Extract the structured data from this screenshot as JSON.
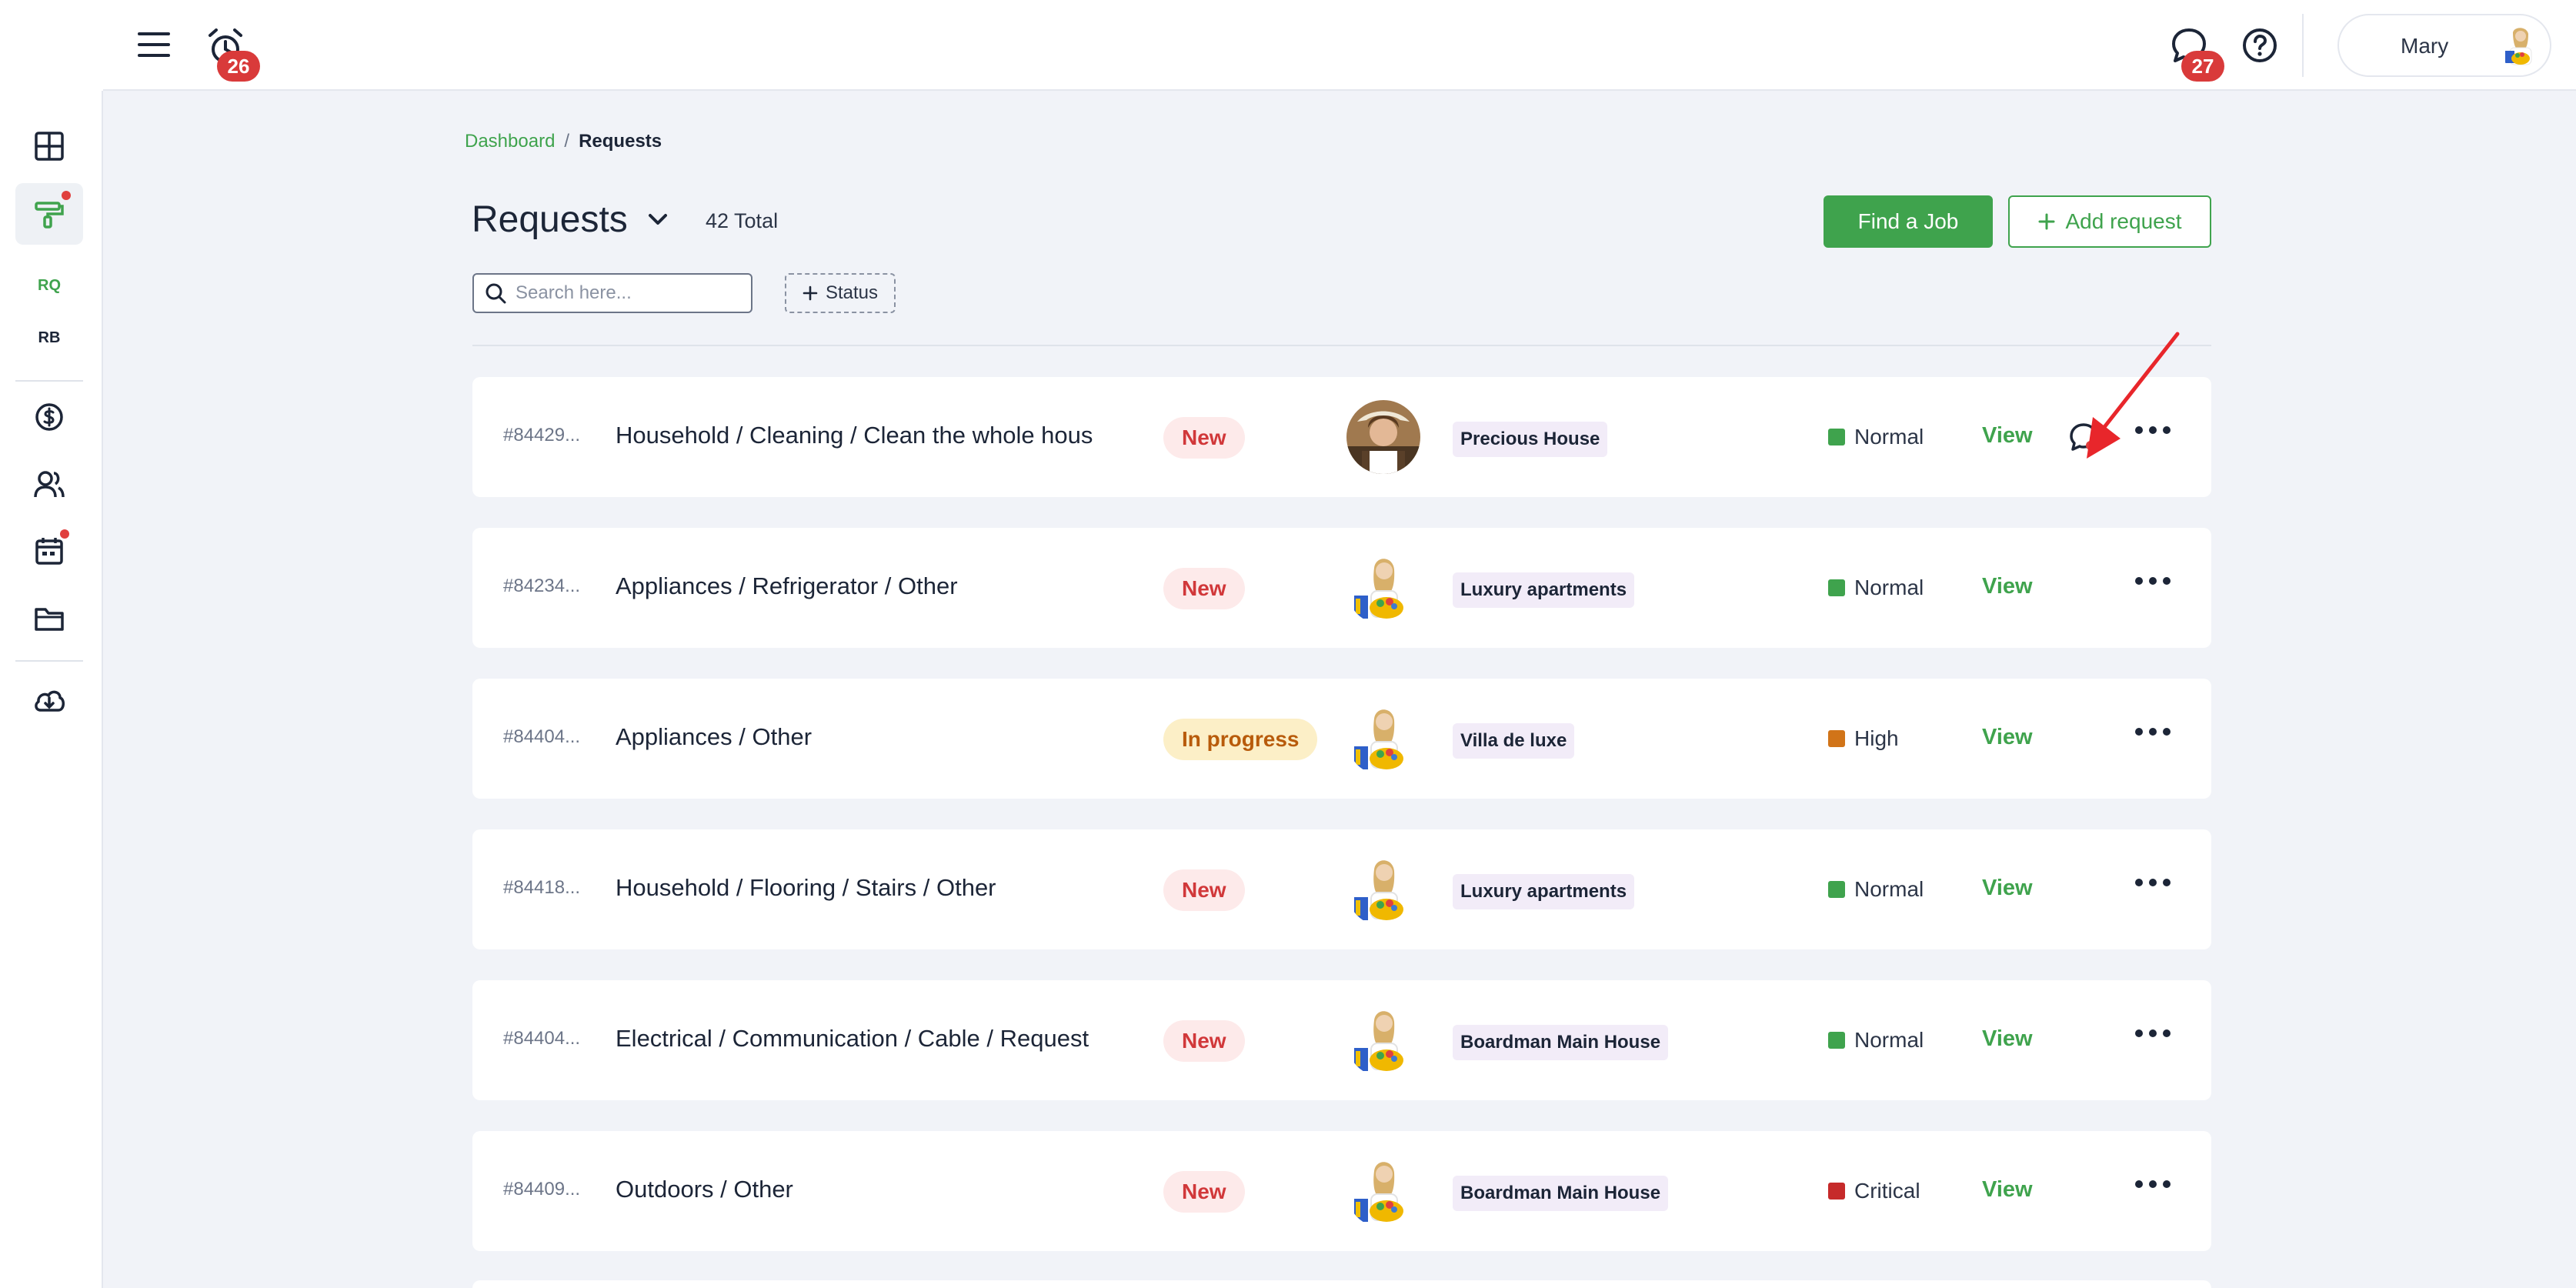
{
  "topbar": {
    "alarm_badge": "26",
    "chat_badge": "27",
    "user_name": "Mary"
  },
  "sidebar": {
    "items": [
      {
        "name": "dashboard-icon"
      },
      {
        "name": "requests-paint-icon"
      },
      {
        "label": "RQ",
        "color": "#3fa34d"
      },
      {
        "label": "RB",
        "color": "#1c2537"
      },
      {
        "name": "billing-dollar-icon"
      },
      {
        "name": "users-icon"
      },
      {
        "name": "calendar-icon"
      },
      {
        "name": "folder-icon"
      },
      {
        "name": "cloud-download-icon"
      }
    ]
  },
  "breadcrumb": {
    "root": "Dashboard",
    "separator": "/",
    "current": "Requests"
  },
  "header": {
    "title": "Requests",
    "total": "42 Total",
    "find_job": "Find a Job",
    "add_request": "Add request"
  },
  "filters": {
    "search_placeholder": "Search here...",
    "status_label": "Status"
  },
  "rows": [
    {
      "id": "#84429...",
      "title": "Household / Cleaning / Clean the whole house",
      "status": "New",
      "property": "Precious House",
      "priority": "Normal",
      "priority_color": "#3fa34d",
      "view": "View",
      "has_chat": true
    },
    {
      "id": "#84234...",
      "title": "Appliances / Refrigerator / Other",
      "status": "New",
      "property": "Luxury apartments",
      "priority": "Normal",
      "priority_color": "#3fa34d",
      "view": "View",
      "has_chat": false
    },
    {
      "id": "#84404...",
      "title": "Appliances / Other",
      "status": "In progress",
      "property": "Villa de luxe",
      "priority": "High",
      "priority_color": "#d17418",
      "view": "View",
      "has_chat": false
    },
    {
      "id": "#84418...",
      "title": "Household / Flooring / Stairs / Other",
      "status": "New",
      "property": "Luxury apartments",
      "priority": "Normal",
      "priority_color": "#3fa34d",
      "view": "View",
      "has_chat": false
    },
    {
      "id": "#84404...",
      "title": "Electrical / Communication / Cable / Request ...",
      "status": "New",
      "property": "Boardman Main House",
      "priority": "Normal",
      "priority_color": "#3fa34d",
      "view": "View",
      "has_chat": false
    },
    {
      "id": "#84409...",
      "title": "Outdoors / Other",
      "status": "New",
      "property": "Boardman Main House",
      "priority": "Critical",
      "priority_color": "#c62a2a",
      "view": "View",
      "has_chat": false
    }
  ],
  "colors": {
    "brand_green": "#3fa34d",
    "badge_red": "#d93a3a",
    "annotation_arrow": "#e8262b"
  }
}
